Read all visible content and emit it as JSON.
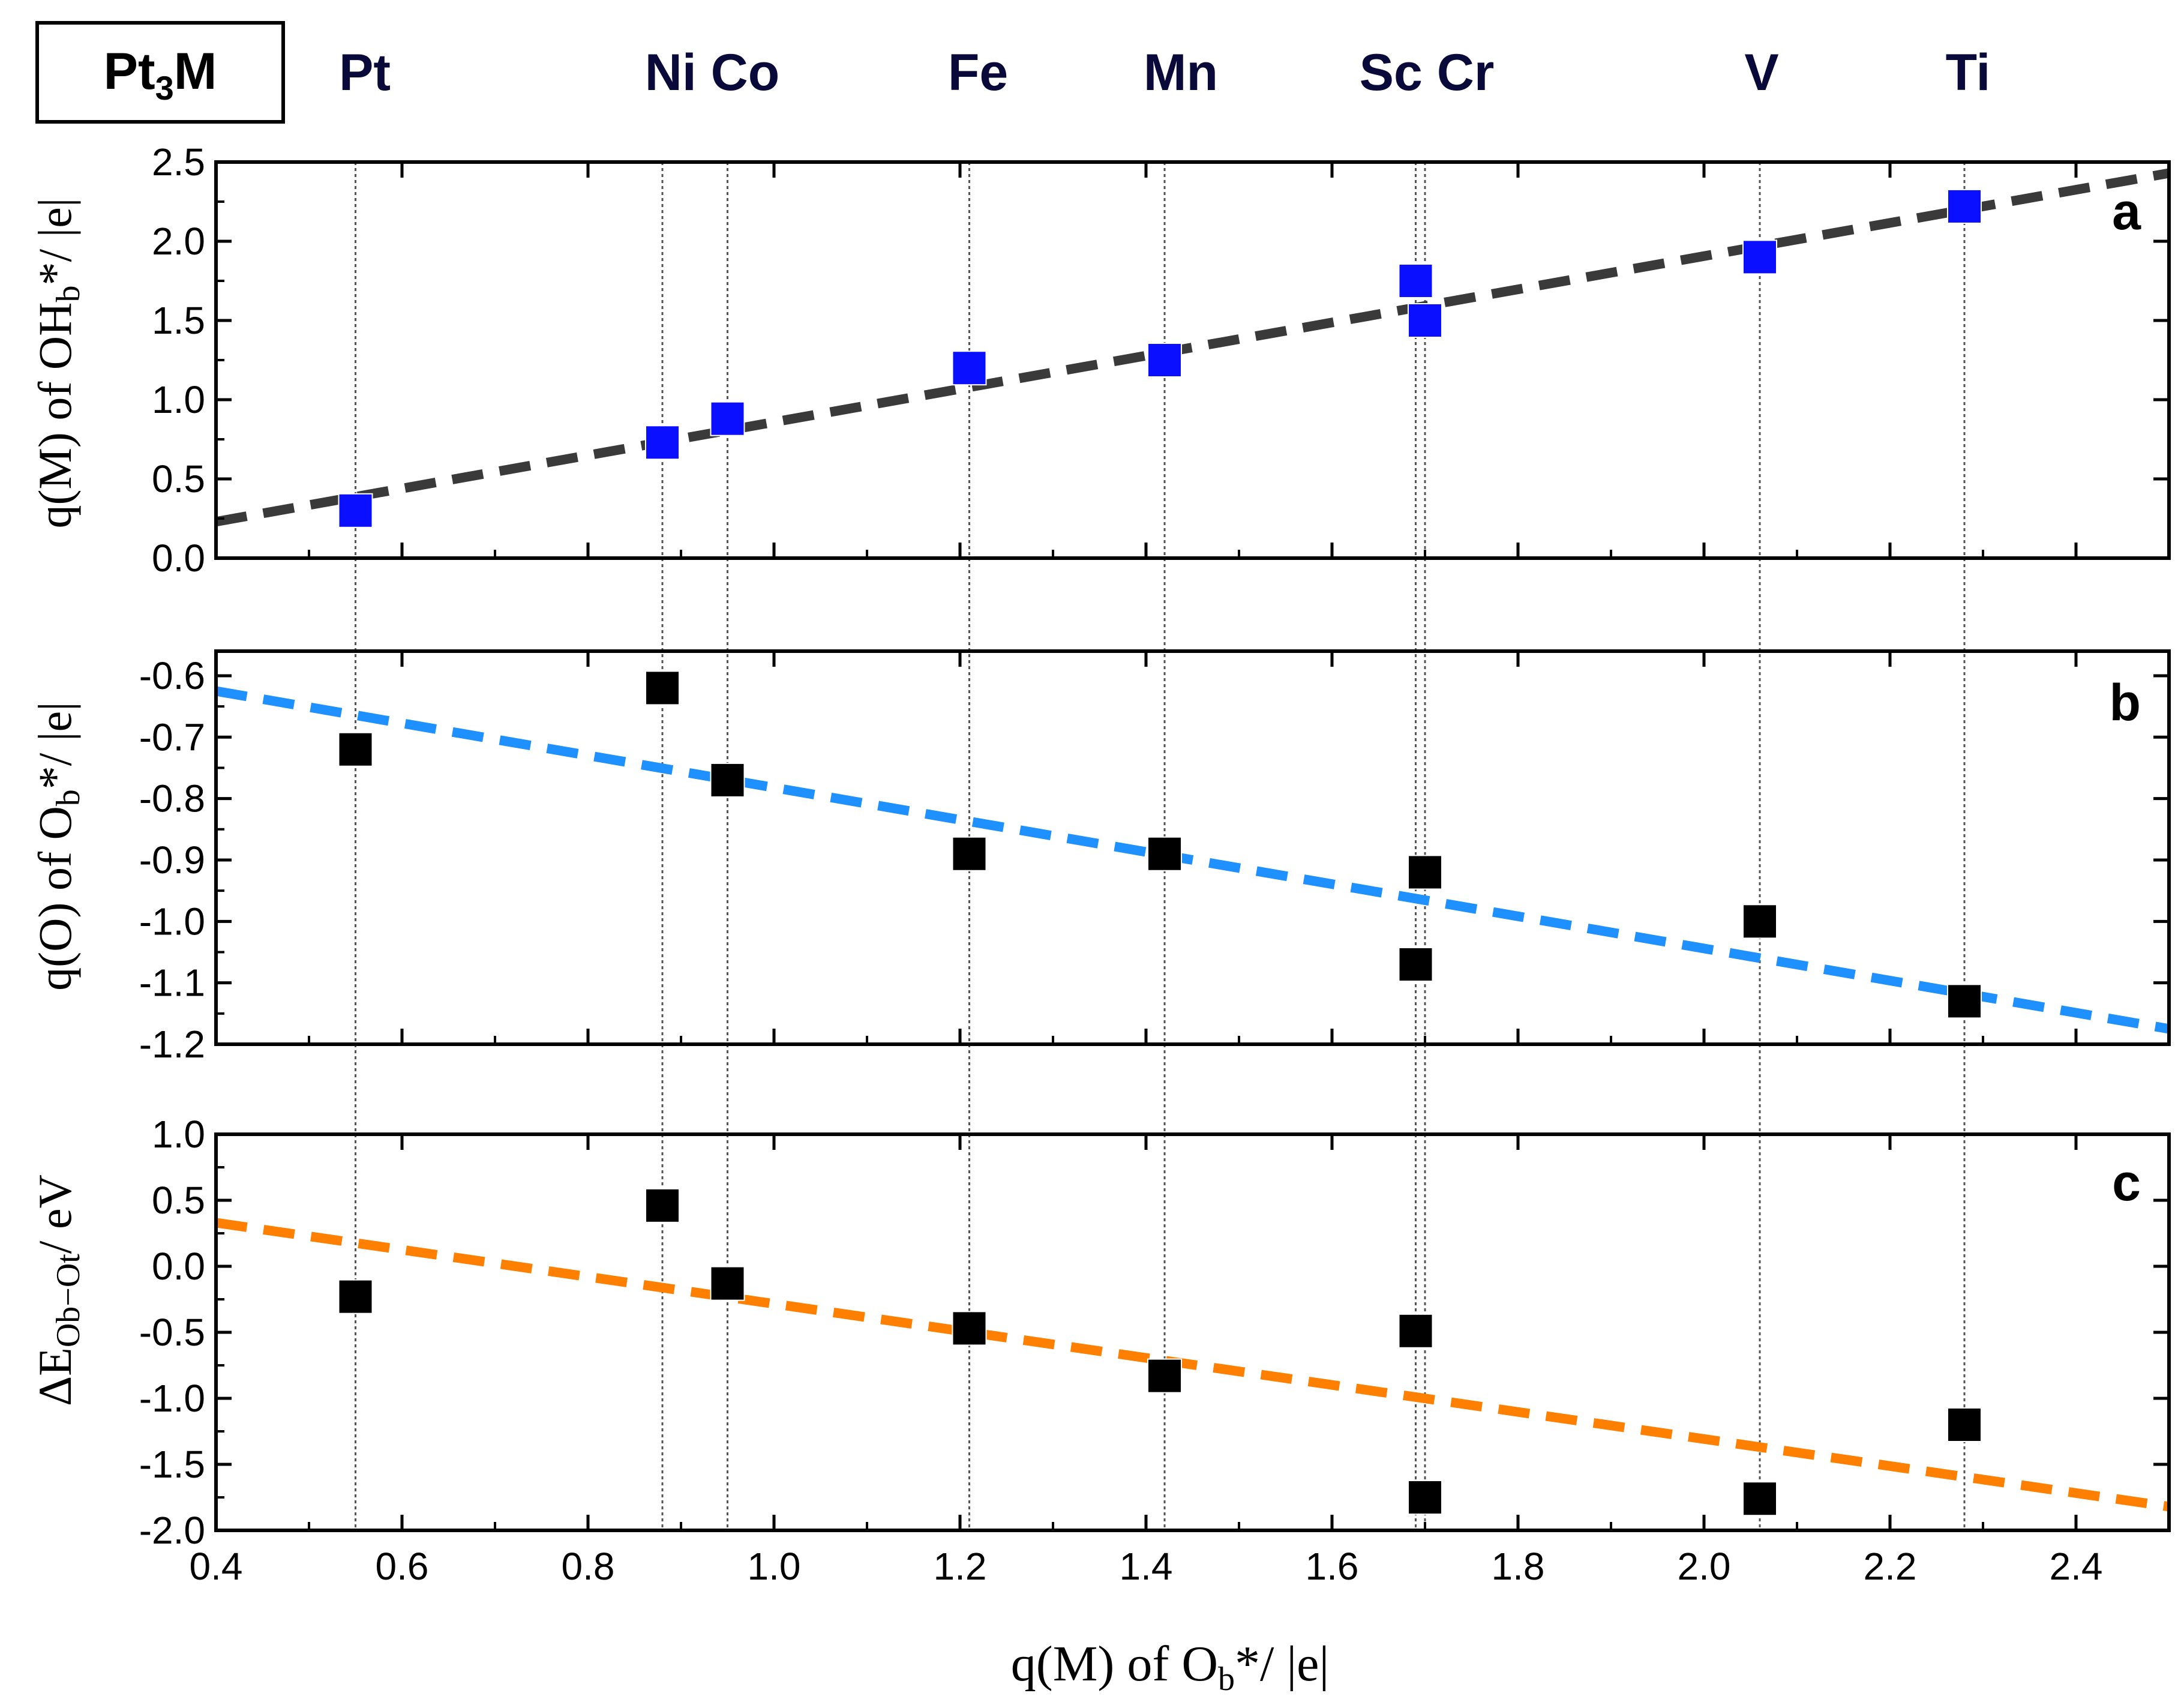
{
  "chart_data": {
    "type": "scatter",
    "alloy_label": {
      "base": "Pt",
      "sub": "3",
      "suffix": "M"
    },
    "elements": [
      {
        "name": "Pt",
        "x": 0.55
      },
      {
        "name": "Ni",
        "x": 0.88
      },
      {
        "name": "Co",
        "x": 0.95
      },
      {
        "name": "Fe",
        "x": 1.21
      },
      {
        "name": "Mn",
        "x": 1.42
      },
      {
        "name": "Sc",
        "x": 1.69
      },
      {
        "name": "Cr",
        "x": 1.7
      },
      {
        "name": "V",
        "x": 2.06
      },
      {
        "name": "Ti",
        "x": 2.28
      }
    ],
    "element_header": [
      "Pt",
      "Ni Co",
      "Fe",
      "Mn",
      "Sc Cr",
      "V",
      "Ti"
    ],
    "xlim": [
      0.4,
      2.5
    ],
    "xticks": [
      "0.4",
      "0.6",
      "0.8",
      "1.0",
      "1.2",
      "1.4",
      "1.6",
      "1.8",
      "2.0",
      "2.2",
      "2.4"
    ],
    "xlabel": {
      "pre": "q(M) of O",
      "sub": "b",
      "post": "*/ |e|"
    },
    "panels": [
      {
        "id": "a",
        "letter": "a",
        "ylabel": {
          "pre": "q(M) of OH",
          "sub": "b",
          "post": "*/ |e|"
        },
        "ylim": [
          0.0,
          2.5
        ],
        "yticks": [
          "0.0",
          "0.5",
          "1.0",
          "1.5",
          "2.0",
          "2.5"
        ],
        "marker_color": "#0a10ff",
        "fit_color": "#3a3a3a",
        "fit": [
          [
            0.4,
            0.23
          ],
          [
            2.5,
            2.43
          ]
        ],
        "points": [
          {
            "label": "Pt",
            "x": 0.55,
            "y": 0.3
          },
          {
            "label": "Ni",
            "x": 0.88,
            "y": 0.73
          },
          {
            "label": "Co",
            "x": 0.95,
            "y": 0.88
          },
          {
            "label": "Fe",
            "x": 1.21,
            "y": 1.2
          },
          {
            "label": "Mn",
            "x": 1.42,
            "y": 1.25
          },
          {
            "label": "Sc",
            "x": 1.69,
            "y": 1.75
          },
          {
            "label": "Cr",
            "x": 1.7,
            "y": 1.5
          },
          {
            "label": "V",
            "x": 2.06,
            "y": 1.9
          },
          {
            "label": "Ti",
            "x": 2.28,
            "y": 2.22
          }
        ]
      },
      {
        "id": "b",
        "letter": "b",
        "ylabel": {
          "pre": "q(O) of O",
          "sub": "b",
          "post": "*/ |e|"
        },
        "ylim": [
          -1.2,
          -0.56
        ],
        "yticks": [
          "-1.2",
          "-1.1",
          "-1.0",
          "-0.9",
          "-0.8",
          "-0.7",
          "-0.6"
        ],
        "marker_color": "#000000",
        "fit_color": "#1e90ff",
        "fit": [
          [
            0.4,
            -0.625
          ],
          [
            2.5,
            -1.175
          ]
        ],
        "points": [
          {
            "label": "Pt",
            "x": 0.55,
            "y": -0.72
          },
          {
            "label": "Ni",
            "x": 0.88,
            "y": -0.62
          },
          {
            "label": "Co",
            "x": 0.95,
            "y": -0.77
          },
          {
            "label": "Fe",
            "x": 1.21,
            "y": -0.89
          },
          {
            "label": "Mn",
            "x": 1.42,
            "y": -0.89
          },
          {
            "label": "Sc",
            "x": 1.69,
            "y": -1.07
          },
          {
            "label": "Cr",
            "x": 1.7,
            "y": -0.92
          },
          {
            "label": "V",
            "x": 2.06,
            "y": -1.0
          },
          {
            "label": "Ti",
            "x": 2.28,
            "y": -1.13
          }
        ]
      },
      {
        "id": "c",
        "letter": "c",
        "ylabel": {
          "pre": "ΔE",
          "sub": "Ob−Ot",
          "post": "/ eV"
        },
        "ylim": [
          -2.0,
          1.0
        ],
        "yticks": [
          "-2.0",
          "-1.5",
          "-1.0",
          "-0.5",
          "0.0",
          "0.5",
          "1.0"
        ],
        "marker_color": "#000000",
        "fit_color": "#ff8000",
        "fit": [
          [
            0.4,
            0.33
          ],
          [
            2.5,
            -1.82
          ]
        ],
        "points": [
          {
            "label": "Pt",
            "x": 0.55,
            "y": -0.23
          },
          {
            "label": "Ni",
            "x": 0.88,
            "y": 0.46
          },
          {
            "label": "Co",
            "x": 0.95,
            "y": -0.13
          },
          {
            "label": "Fe",
            "x": 1.21,
            "y": -0.47
          },
          {
            "label": "Mn",
            "x": 1.42,
            "y": -0.83
          },
          {
            "label": "Sc",
            "x": 1.69,
            "y": -0.49
          },
          {
            "label": "Cr",
            "x": 1.7,
            "y": -1.75
          },
          {
            "label": "V",
            "x": 2.06,
            "y": -1.76
          },
          {
            "label": "Ti",
            "x": 2.28,
            "y": -1.2
          }
        ]
      }
    ]
  }
}
